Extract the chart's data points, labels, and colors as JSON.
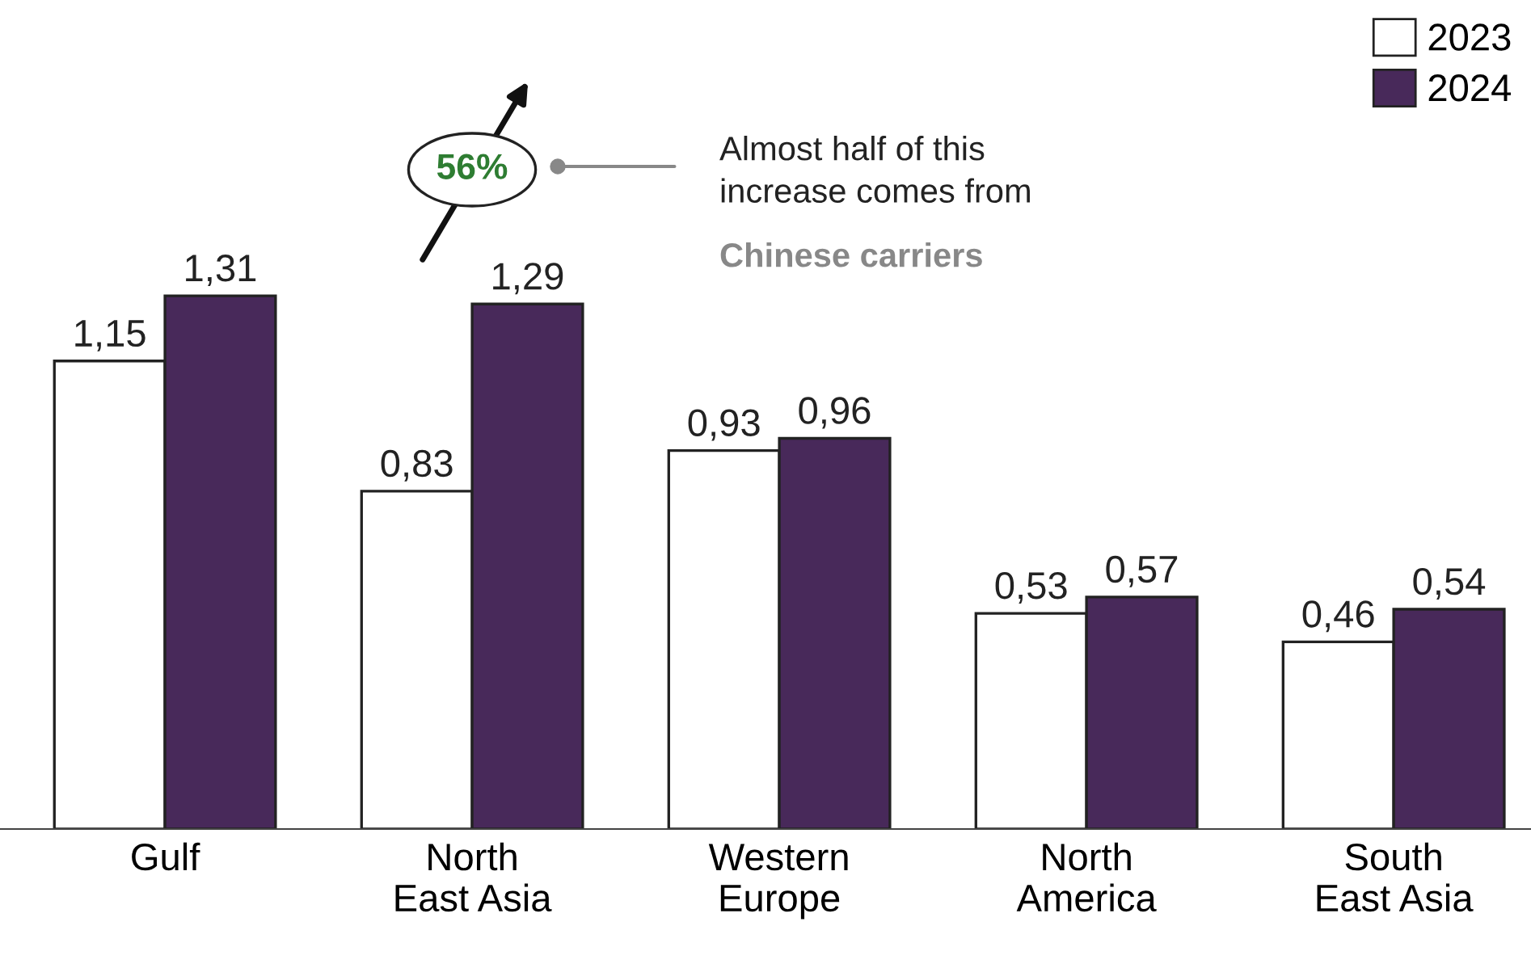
{
  "chart_data": {
    "type": "bar",
    "categories": [
      "Gulf",
      "North\nEast Asia",
      "Western\nEurope",
      "North\nAmerica",
      "South\nEast Asia"
    ],
    "series": [
      {
        "name": "2023",
        "color": "#ffffff",
        "values": [
          1.15,
          0.83,
          0.93,
          0.53,
          0.46
        ],
        "value_labels": [
          "1,15",
          "0,83",
          "0,93",
          "0,53",
          "0,46"
        ]
      },
      {
        "name": "2024",
        "color": "#48295a",
        "values": [
          1.31,
          1.29,
          0.96,
          0.57,
          0.54
        ],
        "value_labels": [
          "1,31",
          "1,29",
          "0,96",
          "0,57",
          "0,54"
        ]
      }
    ],
    "tick_labels": "x",
    "grid": false,
    "legend": "top right",
    "annotations": [
      "56%",
      "Almost half of this\nincrease comes from",
      "Chinese carriers"
    ]
  }
}
